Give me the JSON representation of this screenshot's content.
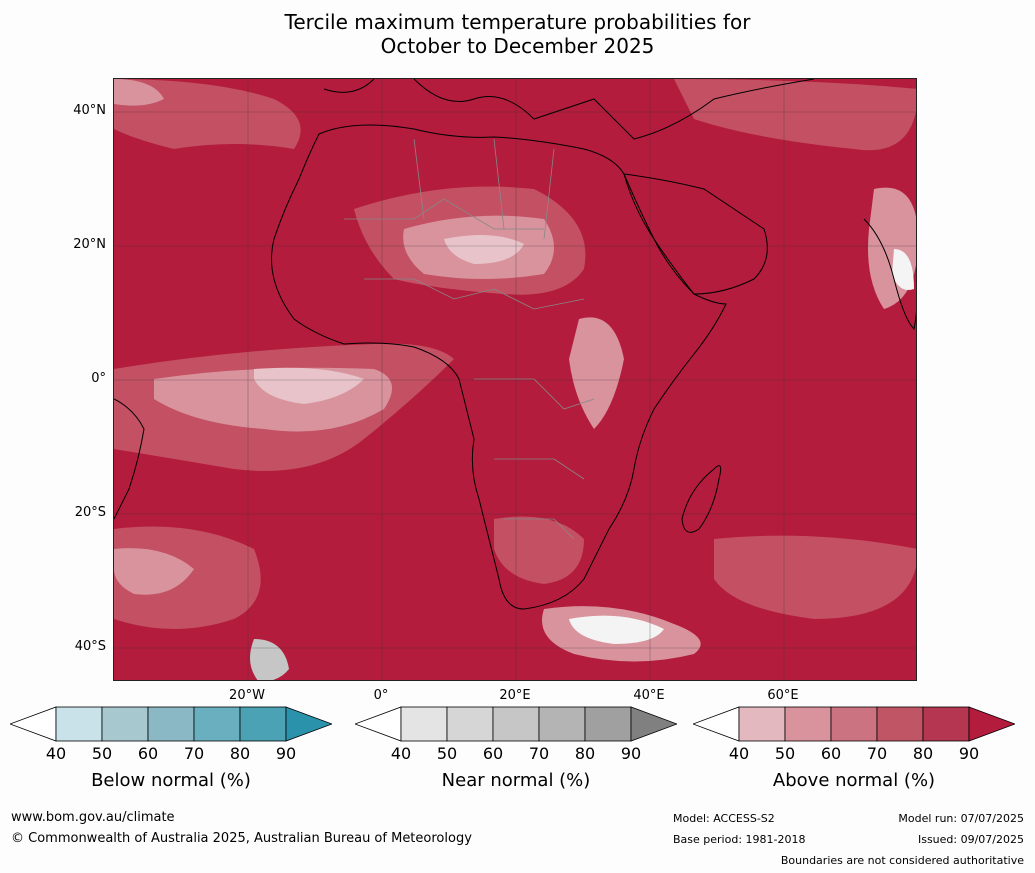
{
  "title_line1": "Tercile maximum temperature probabilities for",
  "title_line2": "October to December 2025",
  "lat_labels": [
    "40°N",
    "20°N",
    "0°",
    "20°S",
    "40°S"
  ],
  "lon_labels": [
    "20°W",
    "0°",
    "20°E",
    "40°E",
    "60°E"
  ],
  "colorbars": [
    {
      "label": "Below normal (%)",
      "ticks": [
        "40",
        "50",
        "60",
        "70",
        "80",
        "90"
      ],
      "colors": [
        "#ffffff",
        "#c9e1e8",
        "#a8c8cf",
        "#8ab8c4",
        "#6aafbf",
        "#4aa2b4",
        "#2b92ab"
      ]
    },
    {
      "label": "Near normal (%)",
      "ticks": [
        "40",
        "50",
        "60",
        "70",
        "80",
        "90"
      ],
      "colors": [
        "#ffffff",
        "#e4e4e4",
        "#d6d6d6",
        "#c6c6c6",
        "#b4b4b4",
        "#a0a0a0",
        "#808080"
      ]
    },
    {
      "label": "Above normal (%)",
      "ticks": [
        "40",
        "50",
        "60",
        "70",
        "80",
        "90"
      ],
      "colors": [
        "#ffffff",
        "#e3b8bf",
        "#d8939d",
        "#cb7380",
        "#c05566",
        "#b53650",
        "#b31c3c"
      ]
    }
  ],
  "footer": {
    "url": "www.bom.gov.au/climate",
    "copyright": "© Commonwealth of Australia 2025, Australian Bureau of Meteorology",
    "model": "Model: ACCESS-S2",
    "base_period": "Base period: 1981-2018",
    "model_run": "Model run: 07/07/2025",
    "issued": "Issued: 09/07/2025",
    "disclaimer": "Boundaries are not considered authoritative"
  },
  "map_colors": {
    "high": "#b31c3c",
    "mid": "#c35063",
    "low": "#d8939d",
    "pale": "#e8c4ca",
    "white": "#f4f4f4",
    "coast": "#000000",
    "border": "#888888"
  }
}
